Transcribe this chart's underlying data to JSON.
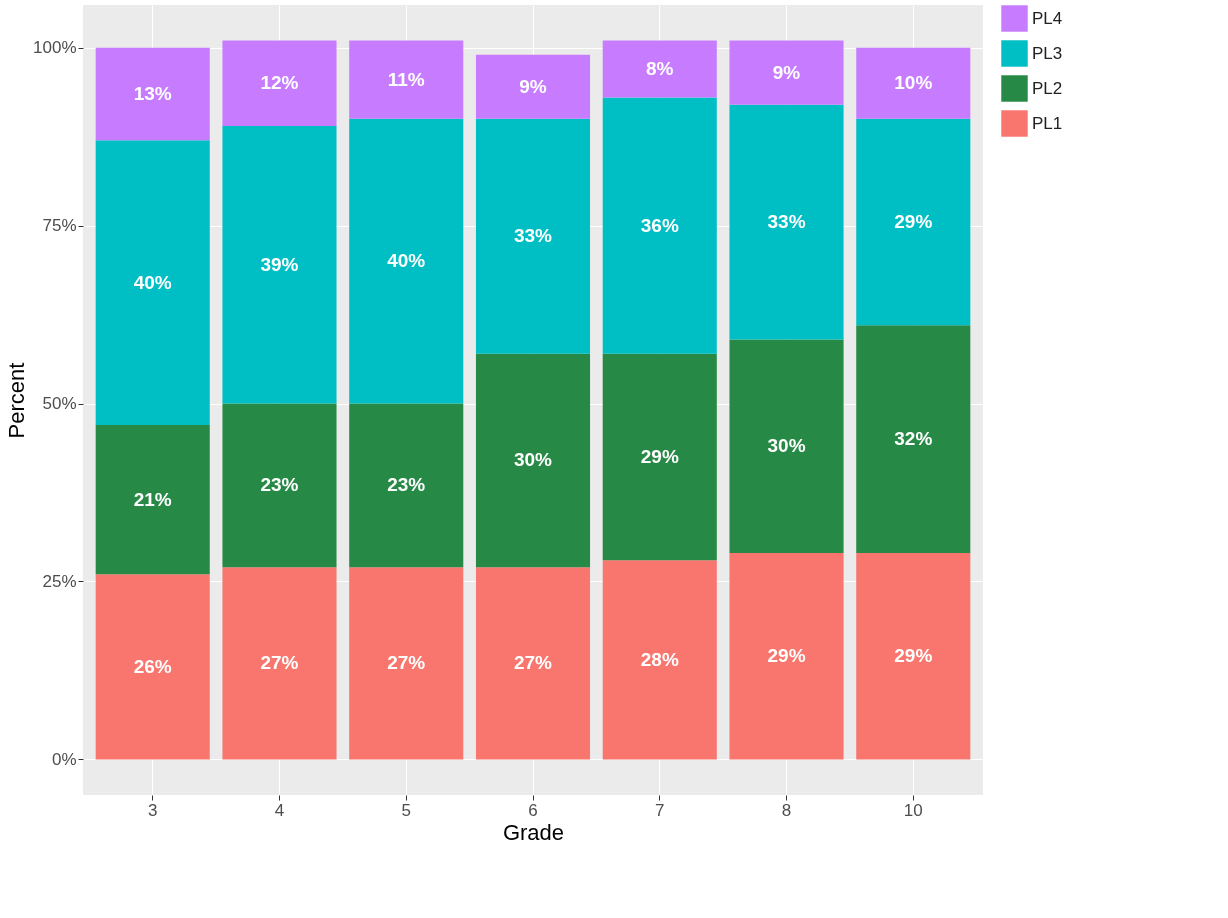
{
  "chart_data": {
    "type": "bar",
    "stacked": true,
    "xlabel": "Grade",
    "ylabel": "Percent",
    "categories": [
      "3",
      "4",
      "5",
      "6",
      "7",
      "8",
      "10"
    ],
    "series": [
      {
        "name": "PL1",
        "color": "#f8766d",
        "values": [
          26,
          27,
          27,
          27,
          28,
          29,
          29
        ],
        "value_labels": [
          "26%",
          "27%",
          "27%",
          "27%",
          "28%",
          "29%",
          "29%"
        ]
      },
      {
        "name": "PL2",
        "color": "#268a46",
        "values": [
          21,
          23,
          23,
          30,
          29,
          30,
          32
        ],
        "value_labels": [
          "21%",
          "23%",
          "23%",
          "30%",
          "29%",
          "30%",
          "32%"
        ]
      },
      {
        "name": "PL3",
        "color": "#00bfc4",
        "values": [
          40,
          39,
          40,
          33,
          36,
          33,
          29
        ],
        "value_labels": [
          "40%",
          "39%",
          "40%",
          "33%",
          "36%",
          "33%",
          "29%"
        ]
      },
      {
        "name": "PL4",
        "color": "#c77cff",
        "values": [
          13,
          12,
          11,
          9,
          8,
          9,
          10
        ],
        "value_labels": [
          "13%",
          "12%",
          "11%",
          "9%",
          "8%",
          "9%",
          "10%"
        ]
      }
    ],
    "ylim": [
      -5,
      106
    ],
    "yticks": [
      {
        "value": 0,
        "label": "0%"
      },
      {
        "value": 25,
        "label": "25%"
      },
      {
        "value": 50,
        "label": "50%"
      },
      {
        "value": 75,
        "label": "75%"
      },
      {
        "value": 100,
        "label": "100%"
      }
    ],
    "grid": true,
    "legend": "right"
  }
}
